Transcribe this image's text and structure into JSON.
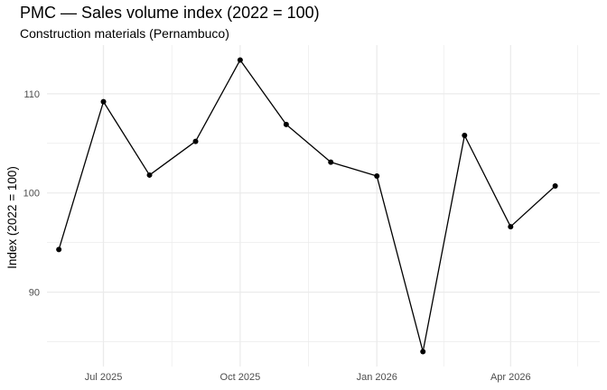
{
  "chart_data": {
    "type": "line",
    "title": "PMC — Sales volume index (2022 = 100)",
    "subtitle": "Construction materials (Pernambuco)",
    "xlabel": "",
    "ylabel": "Index (2022 = 100)",
    "x": [
      "2025-06",
      "2025-07",
      "2025-08",
      "2025-09",
      "2025-10",
      "2025-11",
      "2025-12",
      "2026-01",
      "2026-02",
      "2026-03",
      "2026-04",
      "2026-05"
    ],
    "series": [
      {
        "values": [
          94.3,
          109.2,
          101.8,
          105.2,
          113.4,
          106.9,
          103.1,
          101.7,
          84.0,
          105.8,
          96.6,
          100.7
        ]
      }
    ],
    "x_ticks": [
      "2025-07",
      "2025-10",
      "2026-01",
      "2026-04"
    ],
    "x_tick_labels": [
      "Jul 2025",
      "Oct 2025",
      "Jan 2026",
      "Apr 2026"
    ],
    "x_minor_ticks": [
      "2025-08-16",
      "2025-11-16",
      "2026-02-15",
      "2026-05-16"
    ],
    "y_ticks": [
      90,
      100,
      110
    ],
    "y_minor_ticks": [
      85,
      95,
      105
    ],
    "xlim": [
      "2025-05-24",
      "2026-05-31"
    ],
    "ylim": [
      82.5,
      114.9
    ],
    "grid": true,
    "legend": "none",
    "colors": {
      "line": "#000000",
      "grid": "#ebebeb",
      "background": "#ffffff"
    }
  }
}
